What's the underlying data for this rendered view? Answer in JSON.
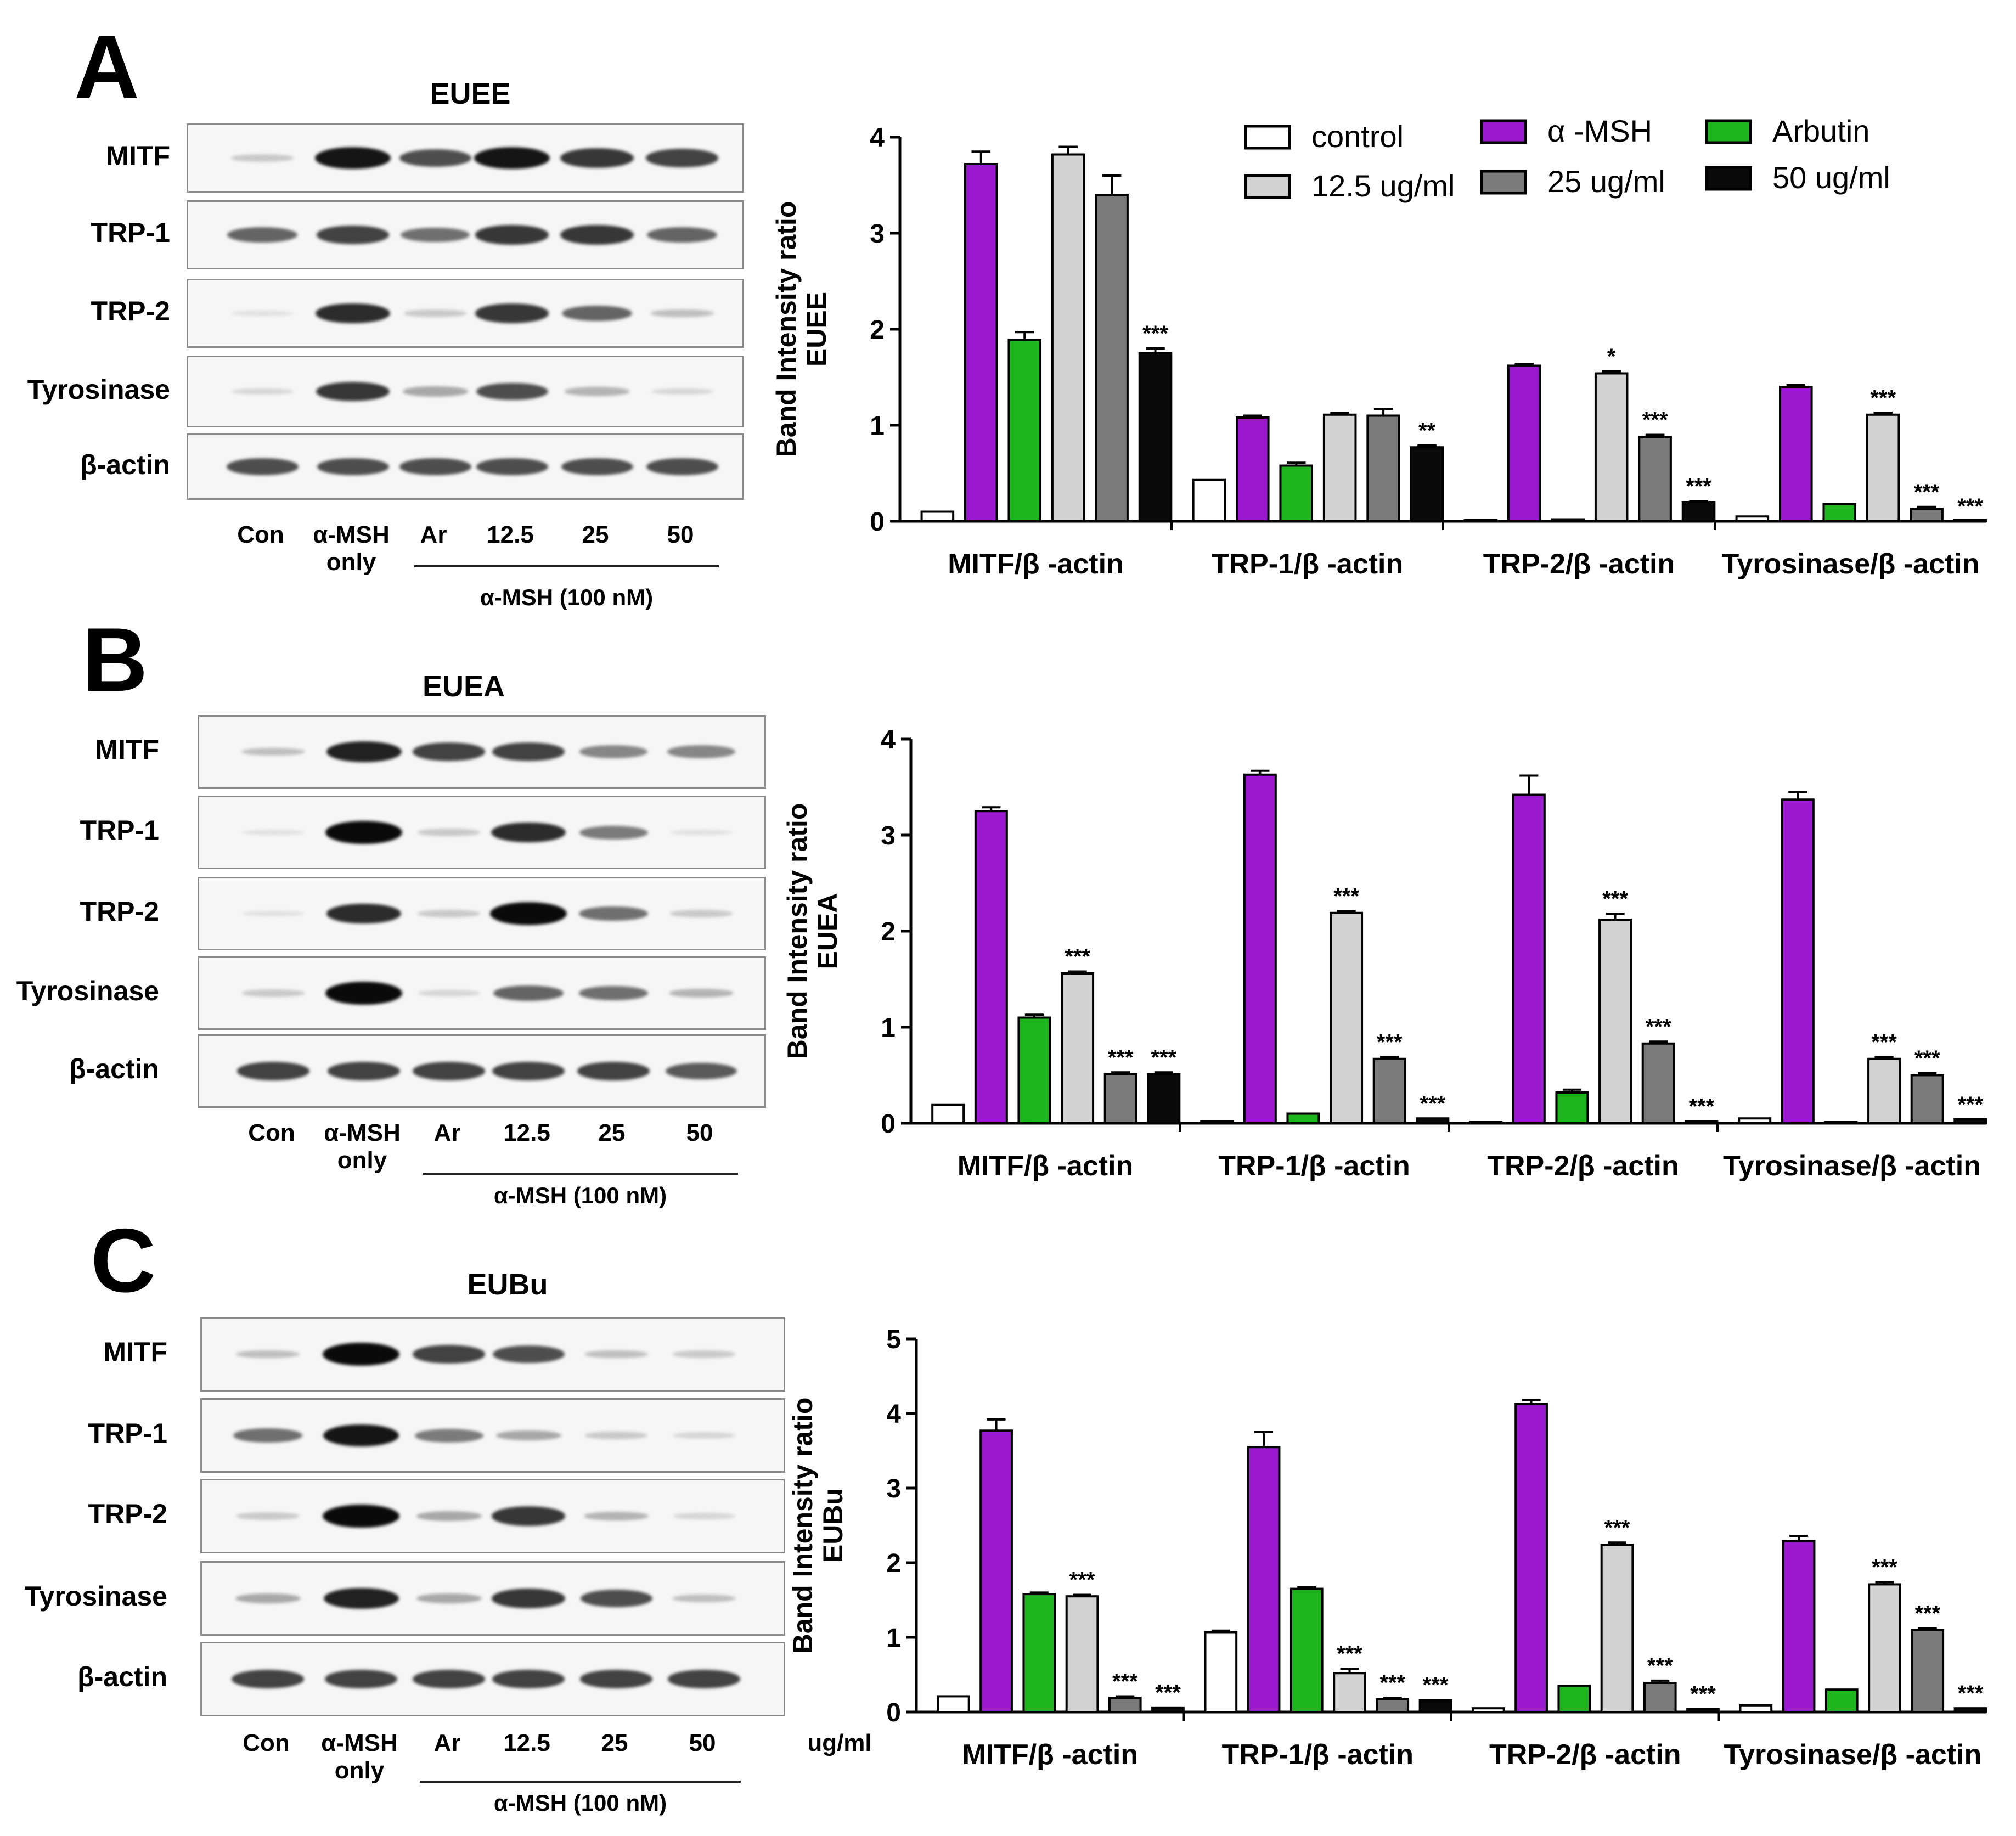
{
  "colors": {
    "control": "#ffffff",
    "a_msh": "#9b1ad1",
    "arbutin": "#1fb51f",
    "c125": "#d3d3d3",
    "c25": "#7a7a7a",
    "c50": "#0a0a0a"
  },
  "legend": [
    {
      "key": "control",
      "label": "control"
    },
    {
      "key": "a_msh",
      "label": "α -MSH"
    },
    {
      "key": "arbutin",
      "label": "Arbutin"
    },
    {
      "key": "c125",
      "label": "12.5 ug/ml"
    },
    {
      "key": "c25",
      "label": "25 ug/ml"
    },
    {
      "key": "c50",
      "label": "50 ug/ml"
    }
  ],
  "blot": {
    "rows": [
      "MITF",
      "TRP-1",
      "TRP-2",
      "Tyrosinase",
      "β-actin"
    ],
    "lanes": [
      "Con",
      "α-MSH\nonly",
      "Ar",
      "12.5",
      "25",
      "50"
    ],
    "treatment": "α-MSH (100 nM)",
    "units": "ug/ml"
  },
  "panels": [
    {
      "letter": "A",
      "blot_title": "EUEE"
    },
    {
      "letter": "B",
      "blot_title": "EUEA"
    },
    {
      "letter": "C",
      "blot_title": "EUBu"
    }
  ],
  "chart_data": [
    {
      "type": "bar",
      "ylabel": "Band Intensity ratio\nEUEE",
      "ylim": [
        0,
        4
      ],
      "yticks": [
        0,
        1,
        2,
        3,
        4
      ],
      "categories": [
        "MITF/β -actin",
        "TRP-1/β -actin",
        "TRP-2/β -actin",
        "Tyrosinase/β -actin"
      ],
      "series": [
        {
          "name": "control",
          "values": [
            0.1,
            0.43,
            0.0,
            0.05
          ],
          "errors": [
            0,
            0,
            0,
            0
          ],
          "sig": [
            "",
            "",
            "",
            ""
          ]
        },
        {
          "name": "α -MSH",
          "values": [
            3.72,
            1.08,
            1.62,
            1.4
          ],
          "errors": [
            0.13,
            0.02,
            0.02,
            0.02
          ],
          "sig": [
            "",
            "",
            "",
            ""
          ]
        },
        {
          "name": "Arbutin",
          "values": [
            1.89,
            0.58,
            0.02,
            0.18
          ],
          "errors": [
            0.08,
            0.03,
            0,
            0
          ],
          "sig": [
            "",
            "",
            "",
            ""
          ]
        },
        {
          "name": "12.5 ug/ml",
          "values": [
            3.82,
            1.11,
            1.54,
            1.11
          ],
          "errors": [
            0.08,
            0.02,
            0.02,
            0.02
          ],
          "sig": [
            "",
            "",
            "*",
            "***"
          ]
        },
        {
          "name": "25 ug/ml",
          "values": [
            3.4,
            1.1,
            0.88,
            0.13
          ],
          "errors": [
            0.2,
            0.07,
            0.02,
            0.02
          ],
          "sig": [
            "",
            "",
            "***",
            "***"
          ]
        },
        {
          "name": "50 ug/ml",
          "values": [
            1.75,
            0.77,
            0.2,
            0.0
          ],
          "errors": [
            0.05,
            0.02,
            0.01,
            0
          ],
          "sig": [
            "***",
            "**",
            "***",
            "***"
          ]
        }
      ]
    },
    {
      "type": "bar",
      "ylabel": "Band Intensity ratio\nEUEA",
      "ylim": [
        0,
        4
      ],
      "yticks": [
        0,
        1,
        2,
        3,
        4
      ],
      "categories": [
        "MITF/β -actin",
        "TRP-1/β -actin",
        "TRP-2/β -actin",
        "Tyrosinase/β -actin"
      ],
      "series": [
        {
          "name": "control",
          "values": [
            0.19,
            0.02,
            0.0,
            0.05
          ],
          "errors": [
            0,
            0,
            0,
            0
          ],
          "sig": [
            "",
            "",
            "",
            ""
          ]
        },
        {
          "name": "α -MSH",
          "values": [
            3.25,
            3.63,
            3.42,
            3.37
          ],
          "errors": [
            0.04,
            0.04,
            0.2,
            0.08
          ],
          "sig": [
            "",
            "",
            "",
            ""
          ]
        },
        {
          "name": "Arbutin",
          "values": [
            1.1,
            0.1,
            0.32,
            0.0
          ],
          "errors": [
            0.03,
            0,
            0.03,
            0
          ],
          "sig": [
            "",
            "",
            "",
            ""
          ]
        },
        {
          "name": "12.5 ug/ml",
          "values": [
            1.56,
            2.19,
            2.12,
            0.67
          ],
          "errors": [
            0.02,
            0.02,
            0.06,
            0.02
          ],
          "sig": [
            "***",
            "***",
            "***",
            "***"
          ]
        },
        {
          "name": "25 ug/ml",
          "values": [
            0.51,
            0.67,
            0.83,
            0.5
          ],
          "errors": [
            0.02,
            0.02,
            0.02,
            0.02
          ],
          "sig": [
            "***",
            "***",
            "***",
            "***"
          ]
        },
        {
          "name": "50 ug/ml",
          "values": [
            0.51,
            0.05,
            0.02,
            0.04
          ],
          "errors": [
            0.02,
            0,
            0,
            0
          ],
          "sig": [
            "***",
            "***",
            "***",
            "***"
          ]
        }
      ]
    },
    {
      "type": "bar",
      "ylabel": "Band Intensity ratio\nEUBu",
      "ylim": [
        0,
        5
      ],
      "yticks": [
        0,
        1,
        2,
        3,
        4,
        5
      ],
      "categories": [
        "MITF/β -actin",
        "TRP-1/β -actin",
        "TRP-2/β -actin",
        "Tyrosinase/β -actin"
      ],
      "series": [
        {
          "name": "control",
          "values": [
            0.21,
            1.07,
            0.05,
            0.09
          ],
          "errors": [
            0,
            0.02,
            0,
            0
          ],
          "sig": [
            "",
            "",
            "",
            ""
          ]
        },
        {
          "name": "α -MSH",
          "values": [
            3.77,
            3.55,
            4.13,
            2.29
          ],
          "errors": [
            0.15,
            0.2,
            0.05,
            0.07
          ],
          "sig": [
            "",
            "",
            "",
            ""
          ]
        },
        {
          "name": "Arbutin",
          "values": [
            1.58,
            1.65,
            0.35,
            0.3
          ],
          "errors": [
            0.02,
            0.02,
            0,
            0
          ],
          "sig": [
            "",
            "",
            "",
            ""
          ]
        },
        {
          "name": "12.5 ug/ml",
          "values": [
            1.55,
            0.52,
            2.24,
            1.71
          ],
          "errors": [
            0.02,
            0.06,
            0.03,
            0.03
          ],
          "sig": [
            "***",
            "***",
            "***",
            "***"
          ]
        },
        {
          "name": "25 ug/ml",
          "values": [
            0.19,
            0.17,
            0.39,
            1.1
          ],
          "errors": [
            0.02,
            0.02,
            0.03,
            0.02
          ],
          "sig": [
            "***",
            "***",
            "***",
            "***"
          ]
        },
        {
          "name": "50 ug/ml",
          "values": [
            0.06,
            0.16,
            0.04,
            0.05
          ],
          "errors": [
            0,
            0,
            0,
            0
          ],
          "sig": [
            "***",
            "***",
            "***",
            "***"
          ]
        }
      ]
    }
  ]
}
